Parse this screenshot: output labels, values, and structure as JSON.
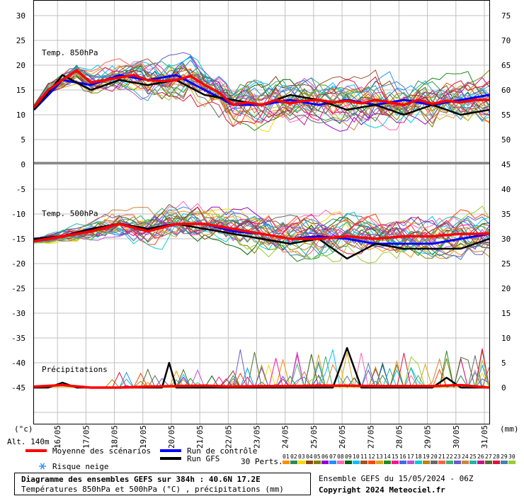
{
  "chart_data": {
    "type": "line",
    "dates": [
      "16/05",
      "17/05",
      "18/05",
      "19/05",
      "20/05",
      "21/05",
      "22/05",
      "23/05",
      "24/05",
      "25/05",
      "26/05",
      "27/05",
      "28/05",
      "29/05",
      "30/05",
      "31/05"
    ],
    "panels": [
      {
        "id": "t850",
        "title": "Temp. 850hPa",
        "left_ticks": [
          "30",
          "25",
          "20",
          "15",
          "10",
          "5",
          "0"
        ],
        "right_ticks": [
          "75",
          "70",
          "65",
          "60",
          "55",
          "50"
        ],
        "ylim": [
          0,
          30
        ],
        "series": [
          {
            "name": "Moyenne des scénarios",
            "color": "#ff0000",
            "x": [
              0,
              12,
              24,
              36,
              48,
              60,
              72,
              84,
              96,
              108,
              120,
              132,
              144,
              156,
              168,
              180,
              192,
              204,
              216,
              228,
              240,
              252,
              264,
              276,
              288,
              300,
              312,
              324,
              336,
              348,
              360,
              372,
              384
            ],
            "y": [
              11.5,
              15,
              17,
              19,
              16.5,
              17,
              17.5,
              18,
              17,
              16.8,
              17,
              17.8,
              16,
              14.5,
              12,
              12.5,
              12,
              13,
              12.3,
              12.8,
              13,
              12.5,
              12.8,
              12.3,
              13,
              12.5,
              12,
              13,
              12.2,
              12.8,
              12.5,
              13,
              13
            ]
          },
          {
            "name": "Run de contrôle",
            "color": "#0000ff",
            "x": [
              0,
              24,
              48,
              72,
              96,
              120,
              144,
              168,
              192,
              216,
              240,
              264,
              288,
              312,
              336,
              360,
              384
            ],
            "y": [
              11,
              17,
              16,
              18,
              17,
              18,
              15,
              12,
              12,
              13,
              12,
              13,
              12,
              13,
              12,
              13,
              14
            ]
          },
          {
            "name": "Run GFS",
            "color": "#000000",
            "x": [
              0,
              24,
              48,
              72,
              96,
              120,
              144,
              168,
              192,
              216,
              240,
              264,
              288,
              312,
              336,
              360,
              384
            ],
            "y": [
              11,
              18,
              15,
              17,
              16,
              17,
              14,
              13,
              12,
              14,
              13,
              11,
              12,
              10,
              12,
              10,
              11
            ]
          }
        ]
      },
      {
        "id": "t500",
        "title": "Temp. 500hPa",
        "left_ticks": [
          "-5",
          "-10",
          "-15",
          "-20",
          "-25",
          "-30",
          "-35",
          "-40",
          "-45"
        ],
        "right_ticks": [
          "45",
          "40",
          "35",
          "30",
          "25",
          "20",
          "15",
          "10",
          "5",
          "0"
        ],
        "ylim": [
          -45,
          0
        ],
        "series": [
          {
            "name": "Moyenne des scénarios",
            "color": "#ff0000",
            "x": [
              0,
              24,
              48,
              72,
              96,
              120,
              144,
              168,
              192,
              216,
              240,
              264,
              288,
              312,
              336,
              360,
              384
            ],
            "y": [
              -15.5,
              -14.5,
              -13.5,
              -12,
              -13.5,
              -12,
              -12,
              -13,
              -14,
              -15,
              -15,
              -14.5,
              -15,
              -14.5,
              -14.5,
              -14,
              -14
            ]
          },
          {
            "name": "Run de contrôle",
            "color": "#0000ff",
            "x": [
              0,
              24,
              48,
              72,
              96,
              120,
              144,
              168,
              192,
              216,
              240,
              264,
              288,
              312,
              336,
              360,
              384
            ],
            "y": [
              -15,
              -14.5,
              -13,
              -12,
              -13,
              -12,
              -12,
              -13.5,
              -14,
              -15,
              -14.5,
              -15,
              -16,
              -16,
              -16,
              -15,
              -14
            ]
          },
          {
            "name": "Run GFS",
            "color": "#000000",
            "x": [
              0,
              24,
              48,
              72,
              96,
              120,
              144,
              168,
              192,
              216,
              240,
              264,
              288,
              312,
              336,
              360,
              384
            ],
            "y": [
              -15,
              -14.5,
              -13,
              -12,
              -13,
              -12,
              -13,
              -14,
              -15,
              -16,
              -15,
              -19,
              -16,
              -17,
              -17,
              -17,
              -15
            ]
          }
        ]
      },
      {
        "id": "precip",
        "title": "Précipitations",
        "ylim": [
          0,
          10
        ],
        "series": [
          {
            "name": "Moyenne des scénarios",
            "color": "#ff0000",
            "x": [
              0,
              24,
              48,
              72,
              96,
              120,
              144,
              168,
              192,
              216,
              240,
              264,
              288,
              312,
              336,
              360,
              384
            ],
            "y": [
              0.2,
              0.5,
              0,
              0,
              0.2,
              0.3,
              0.4,
              0.2,
              0.3,
              0.3,
              0.4,
              0.4,
              0.3,
              0.3,
              0.3,
              0.5,
              0
            ]
          },
          {
            "name": "Run GFS",
            "color": "#000000",
            "x": [
              0,
              12,
              24,
              36,
              48,
              60,
              72,
              84,
              96,
              108,
              114,
              120,
              132,
              144,
              156,
              168,
              180,
              192,
              204,
              216,
              228,
              240,
              252,
              264,
              276,
              288,
              300,
              312,
              324,
              336,
              348,
              360,
              372,
              384
            ],
            "y": [
              0,
              0,
              1,
              0,
              0,
              0,
              0,
              0,
              0,
              0,
              5,
              0,
              0,
              0,
              0,
              0,
              0,
              0,
              0,
              0,
              0,
              0,
              0,
              8,
              0,
              0,
              0,
              0,
              0,
              0,
              2,
              0,
              0,
              0
            ]
          }
        ]
      }
    ],
    "axis_unit_left": "(°c)",
    "axis_unit_right": "(mm)",
    "altitude": "Alt. 140m"
  },
  "legend": {
    "mean": "Moyenne des scénarios",
    "control": "Run de contrôle",
    "gfs": "Run GFS",
    "snow": "Risque neige",
    "perts": "30 Perts.",
    "pert_numbers": [
      "01",
      "02",
      "03",
      "04",
      "05",
      "06",
      "07",
      "08",
      "09",
      "10",
      "11",
      "12",
      "13",
      "14",
      "15",
      "16",
      "17",
      "18",
      "19",
      "20",
      "21",
      "22",
      "23",
      "24",
      "25",
      "26",
      "27",
      "28",
      "29",
      "30"
    ],
    "pert_colors": [
      "#ff8c00",
      "#2e8b57",
      "#ffd700",
      "#8b4513",
      "#808000",
      "#9400d3",
      "#1e90ff",
      "#ff69b4",
      "#006400",
      "#00bfff",
      "#a0522d",
      "#ff4500",
      "#daa520",
      "#228b22",
      "#ff1493",
      "#4169e1",
      "#ba55d3",
      "#00ced1",
      "#b8860b",
      "#696969",
      "#ff6347",
      "#3cb371",
      "#6a5acd",
      "#cd853f",
      "#20b2aa",
      "#c71585",
      "#556b2f",
      "#dc143c",
      "#4682b4",
      "#9acd32"
    ]
  },
  "footer": {
    "title": "Diagramme des ensembles GEFS sur 384h : 40.6N 17.2E",
    "subtitle": "Températures 850hPa et 500hPa (°C) , précipitations (mm)",
    "ensemble": "Ensemble GEFS du 15/05/2024 - 06Z",
    "copyright": "Copyright 2024 Meteociel.fr"
  }
}
